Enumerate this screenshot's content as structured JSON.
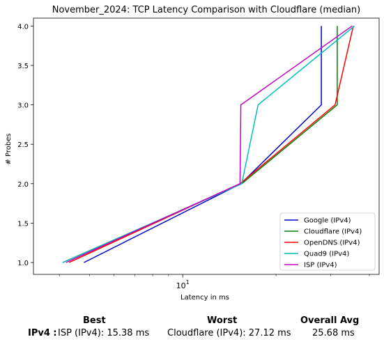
{
  "chart_data": {
    "type": "line",
    "title": "November_2024: TCP Latency Comparison with Cloudflare (median)",
    "xlabel": "Latency in ms",
    "ylabel": "# Probes",
    "xscale": "log",
    "xlim": [
      3.3,
      43
    ],
    "ylim": [
      0.85,
      4.1
    ],
    "x_ticks": [
      {
        "value": 10,
        "label": "10^1"
      }
    ],
    "y_ticks": [
      1.0,
      1.5,
      2.0,
      2.5,
      3.0,
      3.5,
      4.0
    ],
    "y_tick_labels": [
      "1.0",
      "1.5",
      "2.0",
      "2.5",
      "3.0",
      "3.5",
      "4.0"
    ],
    "grid": false,
    "legend_position": "lower-right",
    "series": [
      {
        "name": "Google (IPv4)",
        "color": "#0000cc",
        "x": [
          4.8,
          15.4,
          28.0,
          28.0
        ],
        "y": [
          1,
          2,
          3,
          4
        ]
      },
      {
        "name": "Cloudflare (IPv4)",
        "color": "#008000",
        "x": [
          4.1,
          15.5,
          31.5,
          31.5
        ],
        "y": [
          1,
          2,
          3,
          4
        ]
      },
      {
        "name": "OpenDNS (IPv4)",
        "color": "#ff0000",
        "x": [
          4.3,
          15.3,
          31.0,
          35.5
        ],
        "y": [
          1,
          2,
          3,
          4
        ]
      },
      {
        "name": "Quad9 (IPv4)",
        "color": "#00bfbf",
        "x": [
          4.1,
          15.5,
          17.5,
          35.8
        ],
        "y": [
          1,
          2,
          3,
          4
        ]
      },
      {
        "name": "ISP (IPv4)",
        "color": "#bf00bf",
        "x": [
          4.2,
          15.3,
          15.4,
          35.2
        ],
        "y": [
          1,
          2,
          3,
          4
        ]
      }
    ]
  },
  "summary": {
    "best_header": "Best",
    "worst_header": "Worst",
    "avg_header": "Overall Avg",
    "row_label": "IPv4 :",
    "best_value": "ISP (IPv4): 15.38 ms",
    "worst_value": "Cloudflare (IPv4): 27.12 ms",
    "avg_value": "25.68 ms"
  }
}
